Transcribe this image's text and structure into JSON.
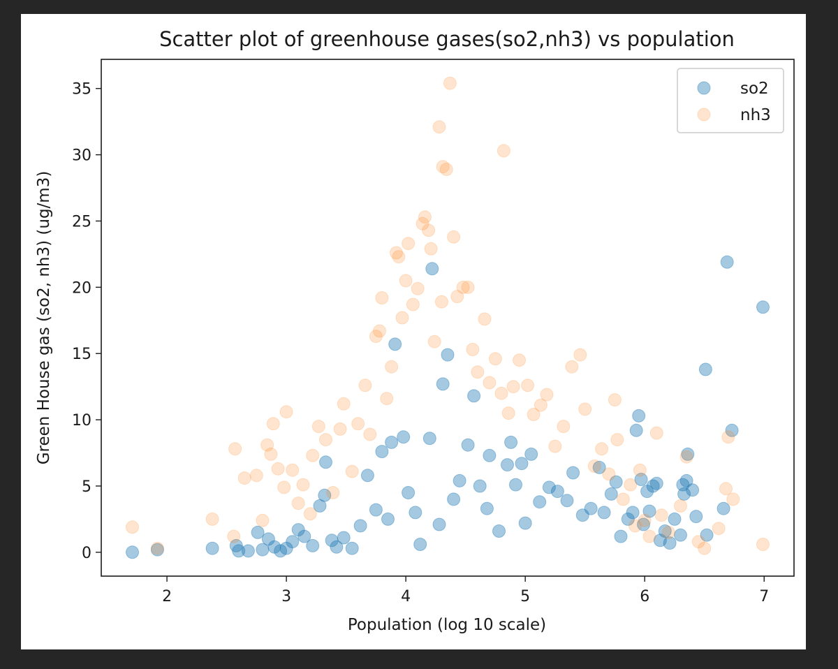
{
  "chart_data": {
    "type": "scatter",
    "title": "Scatter plot of greenhouse gases(so2,nh3) vs population",
    "xlabel": "Population (log 10 scale)",
    "ylabel": "Green House gas (so2, nh3) (ug/m3)",
    "xlim": [
      1.45,
      7.25
    ],
    "ylim": [
      -1.8,
      37.2
    ],
    "x_ticks": [
      2,
      3,
      4,
      5,
      6,
      7
    ],
    "y_ticks": [
      0,
      5,
      10,
      15,
      20,
      25,
      30,
      35
    ],
    "grid": false,
    "legend_position": "top-right",
    "colors": {
      "so2": "#1f77b4",
      "nh3": "#ff7f0e"
    },
    "series": [
      {
        "name": "so2",
        "color": "#1f77b4",
        "alpha": 0.4,
        "points": [
          [
            1.71,
            0.0
          ],
          [
            1.92,
            0.2
          ],
          [
            2.38,
            0.3
          ],
          [
            2.58,
            0.5
          ],
          [
            2.6,
            0.1
          ],
          [
            2.68,
            0.1
          ],
          [
            2.76,
            1.5
          ],
          [
            2.8,
            0.2
          ],
          [
            2.85,
            1.0
          ],
          [
            2.9,
            0.4
          ],
          [
            2.95,
            0.1
          ],
          [
            3.0,
            0.3
          ],
          [
            3.05,
            0.8
          ],
          [
            3.1,
            1.7
          ],
          [
            3.15,
            1.2
          ],
          [
            3.22,
            0.5
          ],
          [
            3.28,
            3.5
          ],
          [
            3.32,
            4.3
          ],
          [
            3.33,
            6.8
          ],
          [
            3.38,
            0.9
          ],
          [
            3.42,
            0.4
          ],
          [
            3.48,
            1.1
          ],
          [
            3.55,
            0.3
          ],
          [
            3.62,
            2.0
          ],
          [
            3.68,
            5.8
          ],
          [
            3.75,
            3.2
          ],
          [
            3.8,
            7.6
          ],
          [
            3.85,
            2.5
          ],
          [
            3.88,
            8.3
          ],
          [
            3.91,
            15.7
          ],
          [
            3.98,
            8.7
          ],
          [
            4.02,
            4.5
          ],
          [
            4.08,
            3.0
          ],
          [
            4.12,
            0.6
          ],
          [
            4.2,
            8.6
          ],
          [
            4.22,
            21.4
          ],
          [
            4.28,
            2.1
          ],
          [
            4.31,
            12.7
          ],
          [
            4.35,
            14.9
          ],
          [
            4.4,
            4.0
          ],
          [
            4.45,
            5.4
          ],
          [
            4.52,
            8.1
          ],
          [
            4.57,
            11.8
          ],
          [
            4.62,
            5.0
          ],
          [
            4.68,
            3.3
          ],
          [
            4.7,
            7.3
          ],
          [
            4.78,
            1.6
          ],
          [
            4.85,
            6.6
          ],
          [
            4.88,
            8.3
          ],
          [
            4.92,
            5.1
          ],
          [
            4.97,
            6.7
          ],
          [
            5.0,
            2.2
          ],
          [
            5.05,
            7.4
          ],
          [
            5.12,
            3.8
          ],
          [
            5.2,
            4.9
          ],
          [
            5.27,
            4.6
          ],
          [
            5.35,
            3.9
          ],
          [
            5.4,
            6.0
          ],
          [
            5.48,
            2.8
          ],
          [
            5.55,
            3.3
          ],
          [
            5.62,
            6.4
          ],
          [
            5.66,
            3.0
          ],
          [
            5.72,
            4.4
          ],
          [
            5.76,
            5.3
          ],
          [
            5.8,
            1.2
          ],
          [
            5.86,
            2.5
          ],
          [
            5.9,
            3.0
          ],
          [
            5.93,
            9.2
          ],
          [
            5.95,
            10.3
          ],
          [
            5.97,
            5.5
          ],
          [
            5.99,
            2.1
          ],
          [
            6.02,
            4.6
          ],
          [
            6.04,
            3.1
          ],
          [
            6.07,
            5.0
          ],
          [
            6.1,
            5.2
          ],
          [
            6.13,
            0.9
          ],
          [
            6.17,
            1.6
          ],
          [
            6.21,
            0.7
          ],
          [
            6.25,
            2.5
          ],
          [
            6.3,
            1.3
          ],
          [
            6.32,
            5.1
          ],
          [
            6.33,
            4.4
          ],
          [
            6.35,
            5.4
          ],
          [
            6.36,
            7.4
          ],
          [
            6.4,
            4.7
          ],
          [
            6.43,
            2.7
          ],
          [
            6.51,
            13.8
          ],
          [
            6.52,
            1.3
          ],
          [
            6.66,
            3.3
          ],
          [
            6.69,
            21.9
          ],
          [
            6.73,
            9.2
          ],
          [
            6.99,
            18.5
          ]
        ]
      },
      {
        "name": "nh3",
        "color": "#ff7f0e",
        "alpha": 0.2,
        "points": [
          [
            1.71,
            1.9
          ],
          [
            1.92,
            0.3
          ],
          [
            2.38,
            2.5
          ],
          [
            2.56,
            1.2
          ],
          [
            2.57,
            7.8
          ],
          [
            2.65,
            5.6
          ],
          [
            2.75,
            5.8
          ],
          [
            2.8,
            2.4
          ],
          [
            2.84,
            8.1
          ],
          [
            2.87,
            7.4
          ],
          [
            2.89,
            9.7
          ],
          [
            2.93,
            6.3
          ],
          [
            2.98,
            4.9
          ],
          [
            3.0,
            10.6
          ],
          [
            3.05,
            6.2
          ],
          [
            3.1,
            3.7
          ],
          [
            3.14,
            5.1
          ],
          [
            3.2,
            2.9
          ],
          [
            3.22,
            7.3
          ],
          [
            3.27,
            9.5
          ],
          [
            3.33,
            8.5
          ],
          [
            3.39,
            4.5
          ],
          [
            3.45,
            9.3
          ],
          [
            3.48,
            11.2
          ],
          [
            3.55,
            6.1
          ],
          [
            3.6,
            9.7
          ],
          [
            3.66,
            12.6
          ],
          [
            3.7,
            8.9
          ],
          [
            3.75,
            16.3
          ],
          [
            3.78,
            16.7
          ],
          [
            3.8,
            19.2
          ],
          [
            3.84,
            11.6
          ],
          [
            3.88,
            14.0
          ],
          [
            3.92,
            22.6
          ],
          [
            3.94,
            22.3
          ],
          [
            3.97,
            17.7
          ],
          [
            4.0,
            20.5
          ],
          [
            4.02,
            23.3
          ],
          [
            4.06,
            18.7
          ],
          [
            4.1,
            19.9
          ],
          [
            4.14,
            24.8
          ],
          [
            4.16,
            25.3
          ],
          [
            4.19,
            24.3
          ],
          [
            4.21,
            22.9
          ],
          [
            4.24,
            15.9
          ],
          [
            4.28,
            32.1
          ],
          [
            4.3,
            18.9
          ],
          [
            4.31,
            29.1
          ],
          [
            4.34,
            28.9
          ],
          [
            4.37,
            35.4
          ],
          [
            4.4,
            23.8
          ],
          [
            4.43,
            19.3
          ],
          [
            4.48,
            20.0
          ],
          [
            4.52,
            20.0
          ],
          [
            4.56,
            15.3
          ],
          [
            4.6,
            13.6
          ],
          [
            4.66,
            17.6
          ],
          [
            4.7,
            12.8
          ],
          [
            4.75,
            14.6
          ],
          [
            4.8,
            12.0
          ],
          [
            4.82,
            30.3
          ],
          [
            4.86,
            10.5
          ],
          [
            4.9,
            12.5
          ],
          [
            4.95,
            14.5
          ],
          [
            5.02,
            12.6
          ],
          [
            5.07,
            10.4
          ],
          [
            5.13,
            11.1
          ],
          [
            5.18,
            11.9
          ],
          [
            5.25,
            8.0
          ],
          [
            5.32,
            9.5
          ],
          [
            5.39,
            14.0
          ],
          [
            5.46,
            14.9
          ],
          [
            5.5,
            10.8
          ],
          [
            5.58,
            6.5
          ],
          [
            5.64,
            7.8
          ],
          [
            5.7,
            5.9
          ],
          [
            5.75,
            11.5
          ],
          [
            5.77,
            8.5
          ],
          [
            5.82,
            4.0
          ],
          [
            5.88,
            5.1
          ],
          [
            5.92,
            2.0
          ],
          [
            5.96,
            6.2
          ],
          [
            6.0,
            2.4
          ],
          [
            6.04,
            1.2
          ],
          [
            6.1,
            9.0
          ],
          [
            6.14,
            2.8
          ],
          [
            6.2,
            1.5
          ],
          [
            6.3,
            3.5
          ],
          [
            6.35,
            7.2
          ],
          [
            6.45,
            0.8
          ],
          [
            6.5,
            0.3
          ],
          [
            6.62,
            1.8
          ],
          [
            6.68,
            4.8
          ],
          [
            6.7,
            8.7
          ],
          [
            6.74,
            4.0
          ],
          [
            6.99,
            0.6
          ]
        ]
      }
    ]
  }
}
